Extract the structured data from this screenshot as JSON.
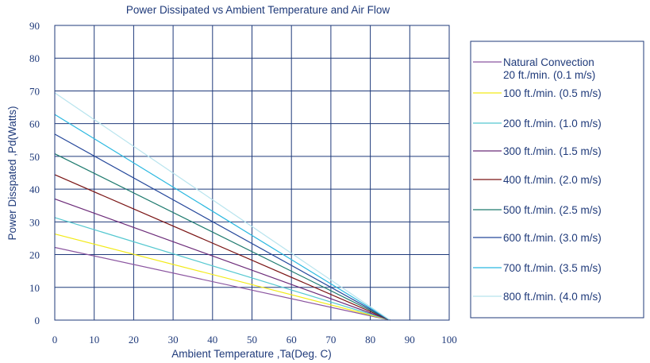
{
  "chart_data": {
    "type": "line",
    "title": "Power Dissipated vs Ambient Temperature and Air Flow",
    "xlabel": "Ambient Temperature ,Ta(Deg. C)",
    "ylabel": "Power Disspated ,Pd(Watts)",
    "xlim": [
      0,
      100
    ],
    "ylim": [
      0,
      90
    ],
    "xticks": [
      0,
      10,
      20,
      30,
      40,
      50,
      60,
      70,
      80,
      90,
      100
    ],
    "yticks": [
      0,
      10,
      20,
      30,
      40,
      50,
      60,
      70,
      80,
      90
    ],
    "grid": true,
    "legend_position": "right",
    "axis_color": "#1f3a7a",
    "series": [
      {
        "name": "Natural Convection 20 ft./min. (0.1 m/s)",
        "color": "#8b55a0",
        "x": [
          0,
          85
        ],
        "y": [
          22.2,
          0
        ]
      },
      {
        "name": "100 ft./min. (0.5 m/s)",
        "color": "#f2ea18",
        "x": [
          0,
          85
        ],
        "y": [
          26.3,
          0
        ]
      },
      {
        "name": "200 ft./min. (1.0 m/s)",
        "color": "#55c8d0",
        "x": [
          0,
          85
        ],
        "y": [
          31.3,
          0
        ]
      },
      {
        "name": "300 ft./min. (1.5 m/s)",
        "color": "#6b2a78",
        "x": [
          0,
          85
        ],
        "y": [
          37.0,
          0
        ]
      },
      {
        "name": "400 ft./min. (2.0 m/s)",
        "color": "#7a1414",
        "x": [
          0,
          85
        ],
        "y": [
          44.4,
          0
        ]
      },
      {
        "name": "500 ft./min. (2.5 m/s)",
        "color": "#1e7a6e",
        "x": [
          0,
          85
        ],
        "y": [
          50.8,
          0
        ]
      },
      {
        "name": "600 ft./min. (3.0 m/s)",
        "color": "#24479a",
        "x": [
          0,
          85
        ],
        "y": [
          56.8,
          0
        ]
      },
      {
        "name": "700 ft./min. (3.5 m/s)",
        "color": "#2ab8e0",
        "x": [
          0,
          85
        ],
        "y": [
          62.8,
          0
        ]
      },
      {
        "name": "800 ft./min. (4.0 m/s)",
        "color": "#b8e4ee",
        "x": [
          0,
          85
        ],
        "y": [
          69.4,
          0
        ]
      }
    ],
    "legend_lines": [
      [
        "Natural Convection",
        "20 ft./min. (0.1 m/s)"
      ],
      [
        "100 ft./min. (0.5 m/s)"
      ],
      [
        "200 ft./min. (1.0 m/s)"
      ],
      [
        "300 ft./min. (1.5 m/s)"
      ],
      [
        "400 ft./min. (2.0 m/s)"
      ],
      [
        "500 ft./min. (2.5 m/s)"
      ],
      [
        "600 ft./min. (3.0 m/s)"
      ],
      [
        "700 ft./min. (3.5 m/s)"
      ],
      [
        "800 ft./min. (4.0 m/s)"
      ]
    ]
  }
}
